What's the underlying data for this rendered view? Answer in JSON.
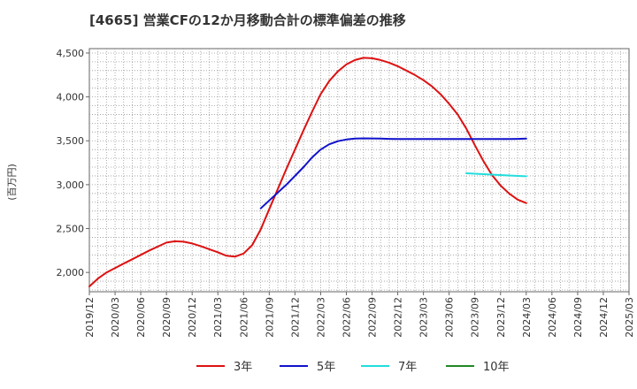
{
  "chart_data": {
    "type": "line",
    "title": "[4665]  営業CFの12か月移動合計の標準偏差の推移",
    "ylabel": "(百万円)",
    "xlabel": "",
    "ylim": [
      1780,
      4550
    ],
    "yticks": [
      2000,
      2500,
      3000,
      3500,
      4000,
      4500
    ],
    "ytick_labels": [
      "2,000",
      "2,500",
      "3,000",
      "3,500",
      "4,000",
      "4,500"
    ],
    "x_ticks": [
      "2019/12",
      "2020/03",
      "2020/06",
      "2020/09",
      "2020/12",
      "2021/03",
      "2021/06",
      "2021/09",
      "2021/12",
      "2022/03",
      "2022/06",
      "2022/09",
      "2022/12",
      "2023/03",
      "2023/06",
      "2023/09",
      "2023/12",
      "2024/03",
      "2024/06",
      "2024/09",
      "2024/12",
      "2025/03"
    ],
    "grid": true,
    "legend_position": "bottom",
    "series": [
      {
        "name": "3年",
        "color": "#dd1111",
        "x": [
          "2019/12",
          "2020/01",
          "2020/02",
          "2020/03",
          "2020/04",
          "2020/05",
          "2020/06",
          "2020/07",
          "2020/08",
          "2020/09",
          "2020/10",
          "2020/11",
          "2020/12",
          "2021/01",
          "2021/02",
          "2021/03",
          "2021/04",
          "2021/05",
          "2021/06",
          "2021/07",
          "2021/08",
          "2021/09",
          "2021/10",
          "2021/11",
          "2021/12",
          "2022/01",
          "2022/02",
          "2022/03",
          "2022/04",
          "2022/05",
          "2022/06",
          "2022/07",
          "2022/08",
          "2022/09",
          "2022/10",
          "2022/11",
          "2022/12",
          "2023/01",
          "2023/02",
          "2023/03",
          "2023/04",
          "2023/05",
          "2023/06",
          "2023/07",
          "2023/08",
          "2023/09",
          "2023/10",
          "2023/11",
          "2023/12",
          "2024/01",
          "2024/02",
          "2024/03"
        ],
        "values": [
          1840,
          1930,
          2000,
          2050,
          2100,
          2150,
          2200,
          2250,
          2295,
          2340,
          2355,
          2350,
          2330,
          2300,
          2265,
          2230,
          2190,
          2180,
          2215,
          2310,
          2490,
          2720,
          2950,
          3180,
          3400,
          3620,
          3830,
          4030,
          4180,
          4290,
          4370,
          4420,
          4445,
          4440,
          4420,
          4390,
          4350,
          4300,
          4250,
          4190,
          4120,
          4030,
          3920,
          3800,
          3640,
          3450,
          3270,
          3110,
          2990,
          2900,
          2830,
          2790
        ]
      },
      {
        "name": "5年",
        "color": "#1111cc",
        "x": [
          "2021/08",
          "2021/09",
          "2021/10",
          "2021/11",
          "2021/12",
          "2022/01",
          "2022/02",
          "2022/03",
          "2022/04",
          "2022/05",
          "2022/06",
          "2022/07",
          "2022/08",
          "2022/09",
          "2022/10",
          "2022/11",
          "2022/12",
          "2023/01",
          "2023/02",
          "2023/03",
          "2023/04",
          "2023/05",
          "2023/06",
          "2023/07",
          "2023/08",
          "2023/09",
          "2023/10",
          "2023/11",
          "2023/12",
          "2024/01",
          "2024/02",
          "2024/03"
        ],
        "values": [
          2730,
          2820,
          2910,
          3000,
          3100,
          3200,
          3310,
          3400,
          3460,
          3495,
          3515,
          3525,
          3528,
          3527,
          3525,
          3522,
          3520,
          3520,
          3520,
          3520,
          3520,
          3520,
          3520,
          3520,
          3520,
          3520,
          3520,
          3520,
          3520,
          3520,
          3522,
          3525
        ]
      },
      {
        "name": "7年",
        "color": "#22dddd",
        "x": [
          "2023/08",
          "2023/09",
          "2023/10",
          "2023/11",
          "2023/12",
          "2024/01",
          "2024/02",
          "2024/03"
        ],
        "values": [
          3130,
          3125,
          3120,
          3115,
          3110,
          3105,
          3100,
          3095
        ]
      },
      {
        "name": "10年",
        "color": "#228822",
        "x": [],
        "values": []
      }
    ]
  }
}
